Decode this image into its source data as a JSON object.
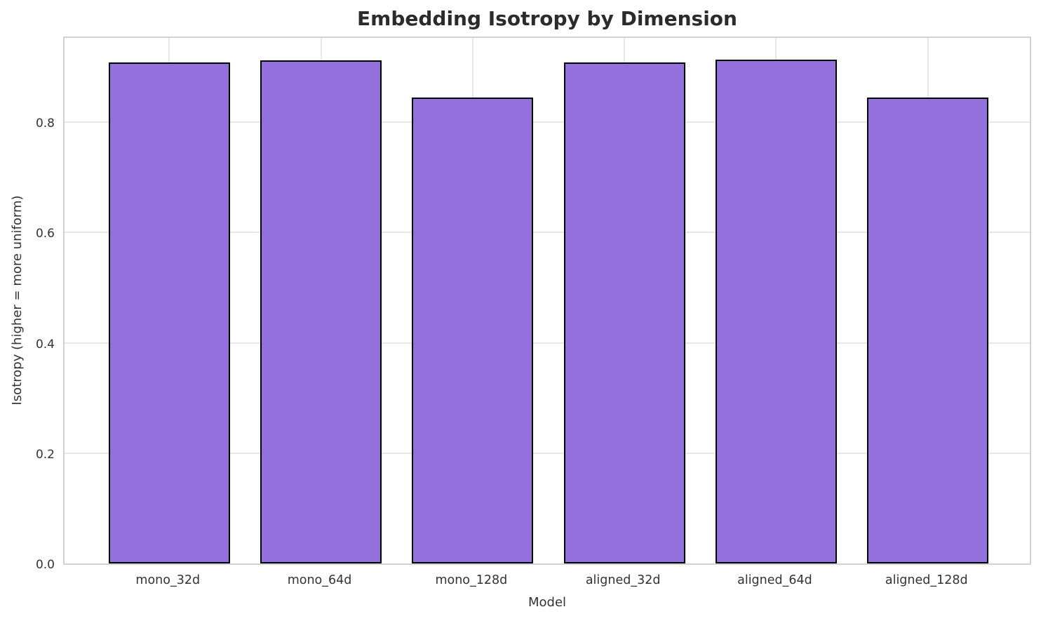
{
  "chart_data": {
    "type": "bar",
    "title": "Embedding Isotropy by Dimension",
    "xlabel": "Model",
    "ylabel": "Isotropy (higher = more uniform)",
    "categories": [
      "mono_32d",
      "mono_64d",
      "mono_128d",
      "aligned_32d",
      "aligned_64d",
      "aligned_128d"
    ],
    "values": [
      0.908,
      0.912,
      0.845,
      0.908,
      0.913,
      0.845
    ],
    "ylim": [
      0,
      0.958
    ],
    "yticks": [
      {
        "value": 0.0,
        "label": "0.0"
      },
      {
        "value": 0.2,
        "label": "0.2"
      },
      {
        "value": 0.4,
        "label": "0.4"
      },
      {
        "value": 0.6,
        "label": "0.6"
      },
      {
        "value": 0.8,
        "label": "0.8"
      }
    ],
    "grid": true,
    "legend": null,
    "colors": {
      "bar_fill": "#9370DB",
      "bar_edge": "#000000",
      "grid": "#e7e7e7",
      "spine": "#d2d2d2",
      "tick_text": "#333333",
      "title_text": "#2b2b2b"
    }
  }
}
